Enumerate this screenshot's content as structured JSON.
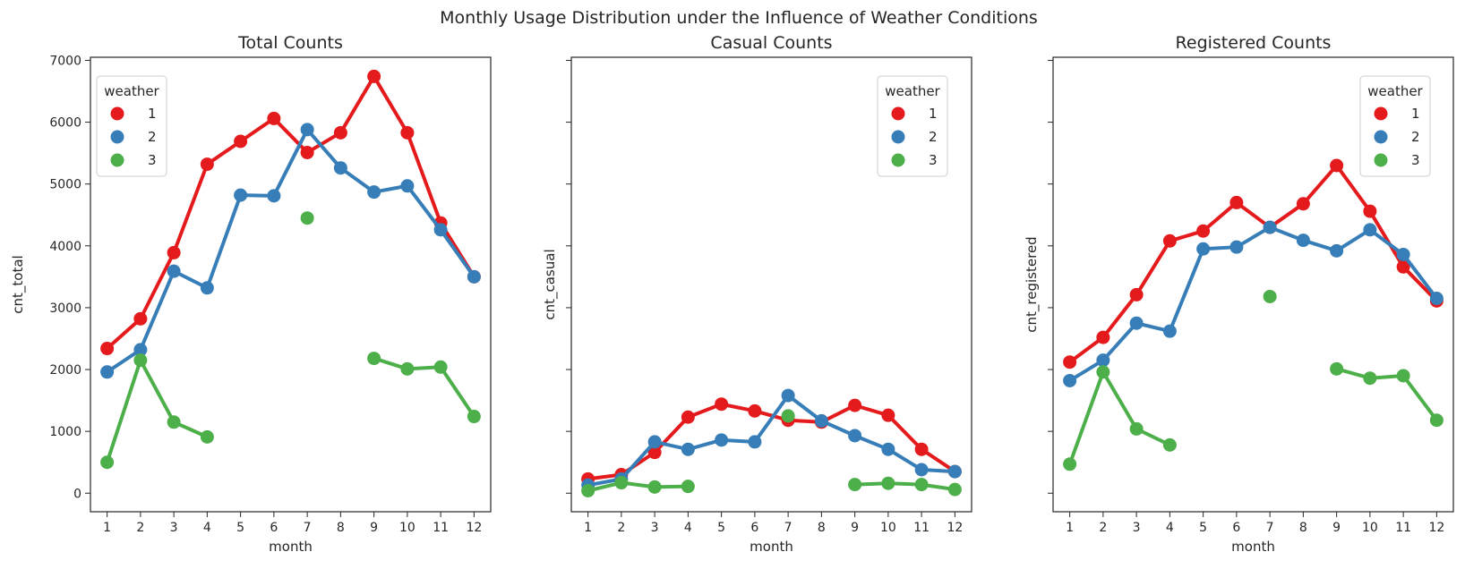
{
  "figure_title": "Monthly Usage Distribution under the Influence of Weather Conditions",
  "colors": {
    "1": "#e41a1c",
    "2": "#377eb8",
    "3": "#4daf4a"
  },
  "chart_data": [
    {
      "type": "line",
      "title": "Total Counts",
      "xlabel": "month",
      "ylabel": "cnt_total",
      "categories": [
        1,
        2,
        3,
        4,
        5,
        6,
        7,
        8,
        9,
        10,
        11,
        12
      ],
      "ylim": [
        -300,
        7050
      ],
      "yticks": [
        0,
        1000,
        2000,
        3000,
        4000,
        5000,
        6000,
        7000
      ],
      "show_ytick_labels": true,
      "legend": {
        "title": "weather",
        "placement": "top-left",
        "entries": [
          "1",
          "2",
          "3"
        ]
      },
      "series": [
        {
          "name": "1",
          "color": "#e41a1c",
          "values": [
            2340,
            2820,
            3890,
            5320,
            5690,
            6060,
            5510,
            5830,
            6740,
            5830,
            4370,
            3500
          ]
        },
        {
          "name": "2",
          "color": "#377eb8",
          "values": [
            1960,
            2320,
            3590,
            3320,
            4820,
            4810,
            5880,
            5260,
            4870,
            4970,
            4260,
            3500
          ]
        },
        {
          "name": "3",
          "color": "#4daf4a",
          "values": [
            500,
            2150,
            1150,
            910,
            null,
            null,
            4450,
            null,
            2180,
            2010,
            2040,
            1240
          ]
        }
      ]
    },
    {
      "type": "line",
      "title": "Casual Counts",
      "xlabel": "month",
      "ylabel": "cnt_casual",
      "categories": [
        1,
        2,
        3,
        4,
        5,
        6,
        7,
        8,
        9,
        10,
        11,
        12
      ],
      "ylim": [
        -300,
        7050
      ],
      "yticks": [
        0,
        1000,
        2000,
        3000,
        4000,
        5000,
        6000,
        7000
      ],
      "show_ytick_labels": false,
      "legend": {
        "title": "weather",
        "placement": "top-right",
        "entries": [
          "1",
          "2",
          "3"
        ]
      },
      "series": [
        {
          "name": "1",
          "color": "#e41a1c",
          "values": [
            230,
            300,
            660,
            1230,
            1440,
            1330,
            1180,
            1150,
            1420,
            1260,
            710,
            350
          ]
        },
        {
          "name": "2",
          "color": "#377eb8",
          "values": [
            130,
            230,
            830,
            710,
            860,
            830,
            1580,
            1170,
            930,
            710,
            380,
            350
          ]
        },
        {
          "name": "3",
          "color": "#4daf4a",
          "values": [
            40,
            170,
            100,
            110,
            null,
            null,
            1250,
            null,
            140,
            160,
            140,
            60
          ]
        }
      ]
    },
    {
      "type": "line",
      "title": "Registered Counts",
      "xlabel": "month",
      "ylabel": "cnt_registered",
      "categories": [
        1,
        2,
        3,
        4,
        5,
        6,
        7,
        8,
        9,
        10,
        11,
        12
      ],
      "ylim": [
        -300,
        7050
      ],
      "yticks": [
        0,
        1000,
        2000,
        3000,
        4000,
        5000,
        6000,
        7000
      ],
      "show_ytick_labels": false,
      "legend": {
        "title": "weather",
        "placement": "top-right",
        "entries": [
          "1",
          "2",
          "3"
        ]
      },
      "series": [
        {
          "name": "1",
          "color": "#e41a1c",
          "values": [
            2120,
            2520,
            3210,
            4080,
            4240,
            4700,
            4300,
            4680,
            5300,
            4560,
            3660,
            3110
          ]
        },
        {
          "name": "2",
          "color": "#377eb8",
          "values": [
            1820,
            2150,
            2750,
            2620,
            3950,
            3980,
            4300,
            4090,
            3920,
            4260,
            3860,
            3150
          ]
        },
        {
          "name": "3",
          "color": "#4daf4a",
          "values": [
            470,
            1960,
            1040,
            780,
            null,
            null,
            3180,
            null,
            2010,
            1860,
            1900,
            1180
          ]
        }
      ]
    }
  ]
}
